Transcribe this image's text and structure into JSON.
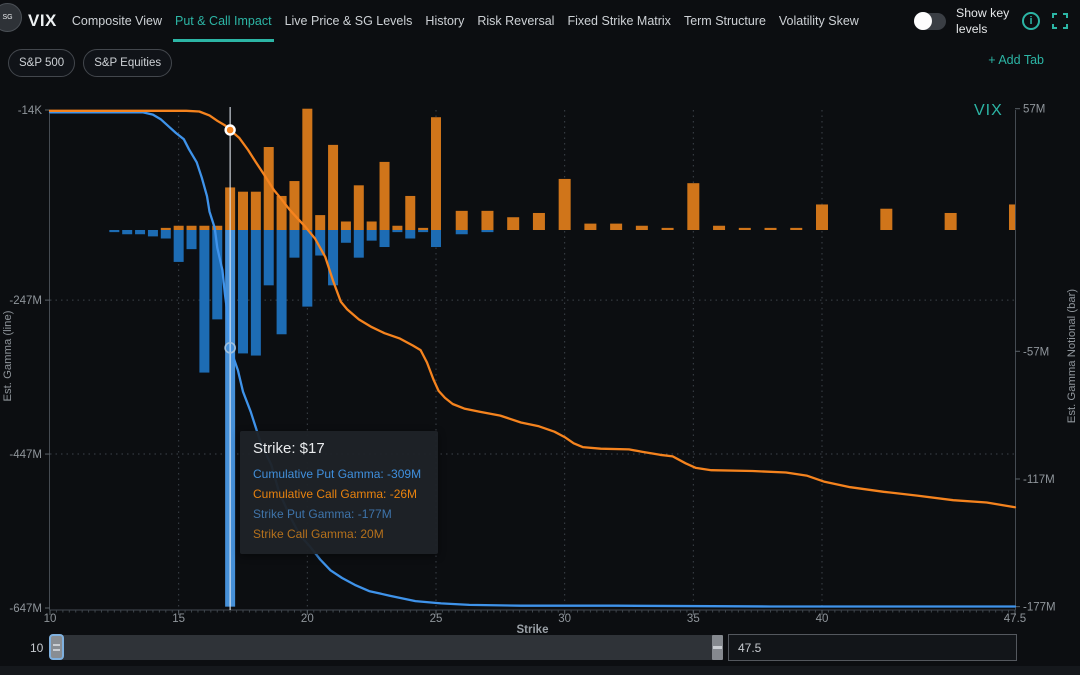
{
  "accent_color": "#2cb5a5",
  "header": {
    "logo_badge": "SG",
    "logo_text": "VIX",
    "tabs": [
      {
        "label": "Composite View",
        "active": false
      },
      {
        "label": "Put & Call Impact",
        "active": true
      },
      {
        "label": "Live Price & SG Levels",
        "active": false
      },
      {
        "label": "History",
        "active": false
      },
      {
        "label": "Risk Reversal",
        "active": false
      },
      {
        "label": "Fixed Strike Matrix",
        "active": false
      },
      {
        "label": "Term Structure",
        "active": false
      },
      {
        "label": "Volatility Skew",
        "active": false
      }
    ],
    "toggle": {
      "label": "Show key levels",
      "state": "off"
    },
    "info_icon": "info-icon",
    "fullscreen_icon": "fullscreen-icon"
  },
  "subnav": {
    "pills": [
      "S&P 500",
      "S&P Equities"
    ],
    "add_tab_label": "+ Add Tab"
  },
  "chart_data": {
    "type": "bar",
    "title": "VIX",
    "xlabel": "Strike",
    "units": "M = millions, values in Est. Gamma",
    "x_axis": {
      "range": [
        10,
        47.5
      ],
      "ticks": [
        10,
        15,
        20,
        25,
        30,
        35,
        40,
        47.5
      ],
      "tick_labels": [
        "10",
        "15",
        "20",
        "25",
        "30",
        "35",
        "40",
        "47.5"
      ],
      "grid_x": [
        15,
        20,
        25,
        30,
        35,
        40
      ]
    },
    "left_axis": {
      "label": "Est. Gamma (line)",
      "ticks": [
        {
          "label": "-14K",
          "value": -0.014
        },
        {
          "label": "-247M",
          "value": -247
        },
        {
          "label": "-447M",
          "value": -447
        },
        {
          "label": "-647M",
          "value": -647
        }
      ],
      "grid_y": [
        -247,
        -447
      ]
    },
    "right_axis": {
      "label": "Est. Gamma Notional (bar)",
      "ticks": [
        {
          "label": "57M",
          "value": 57
        },
        {
          "label": "-57M",
          "value": -57
        },
        {
          "label": "-117M",
          "value": -117
        },
        {
          "label": "-177M",
          "value": -177
        }
      ]
    },
    "bars": {
      "put": {
        "name": "Strike Put Gamma",
        "color": "#1d6cb4",
        "points": [
          [
            12.5,
            -1
          ],
          [
            13,
            -2
          ],
          [
            13.5,
            -2
          ],
          [
            14,
            -3
          ],
          [
            14.5,
            -4
          ],
          [
            15,
            -15
          ],
          [
            15.5,
            -9
          ],
          [
            16,
            -67
          ],
          [
            16.5,
            -42
          ],
          [
            17,
            -177
          ],
          [
            17.5,
            -58
          ],
          [
            18,
            -59
          ],
          [
            18.5,
            -26
          ],
          [
            19,
            -49
          ],
          [
            19.5,
            -13
          ],
          [
            20,
            -36
          ],
          [
            20.5,
            -12
          ],
          [
            21,
            -26
          ],
          [
            21.5,
            -6
          ],
          [
            22,
            -13
          ],
          [
            22.5,
            -5
          ],
          [
            23,
            -8
          ],
          [
            23.5,
            -1
          ],
          [
            24,
            -4
          ],
          [
            24.5,
            -1
          ],
          [
            25,
            -8
          ],
          [
            26,
            -2
          ],
          [
            27,
            -1
          ]
        ]
      },
      "call": {
        "name": "Strike Call Gamma",
        "color": "#d0751a",
        "points": [
          [
            14.5,
            1
          ],
          [
            15,
            2
          ],
          [
            15.5,
            2
          ],
          [
            16,
            2
          ],
          [
            16.5,
            2
          ],
          [
            17,
            20
          ],
          [
            17.5,
            18
          ],
          [
            18,
            18
          ],
          [
            18.5,
            39
          ],
          [
            19,
            16
          ],
          [
            19.5,
            23
          ],
          [
            20,
            57
          ],
          [
            20.5,
            7
          ],
          [
            21,
            40
          ],
          [
            21.5,
            4
          ],
          [
            22,
            21
          ],
          [
            22.5,
            4
          ],
          [
            23,
            32
          ],
          [
            23.5,
            2
          ],
          [
            24,
            16
          ],
          [
            24.5,
            1
          ],
          [
            25,
            53
          ],
          [
            26,
            9
          ],
          [
            27,
            9
          ],
          [
            28,
            6
          ],
          [
            29,
            8
          ],
          [
            30,
            24
          ],
          [
            31,
            3
          ],
          [
            32,
            3
          ],
          [
            33,
            2
          ],
          [
            34,
            1
          ],
          [
            35,
            22
          ],
          [
            36,
            2
          ],
          [
            37,
            1
          ],
          [
            38,
            1
          ],
          [
            39,
            1
          ],
          [
            40,
            12
          ],
          [
            42.5,
            10
          ],
          [
            45,
            8
          ],
          [
            47.5,
            12
          ]
        ]
      }
    },
    "lines": {
      "cumulative_put": {
        "name": "Cumulative Put Gamma",
        "color": "#3f93ea",
        "points": [
          [
            10,
            -3
          ],
          [
            13.6,
            -3
          ],
          [
            14,
            -6
          ],
          [
            14.3,
            -12
          ],
          [
            14.6,
            -21
          ],
          [
            14.9,
            -30
          ],
          [
            15.2,
            -38
          ],
          [
            15.4,
            -51
          ],
          [
            15.7,
            -68
          ],
          [
            15.9,
            -88
          ],
          [
            16.1,
            -112
          ],
          [
            16.2,
            -132
          ],
          [
            16.4,
            -153
          ],
          [
            16.5,
            -179
          ],
          [
            16.7,
            -208
          ],
          [
            16.8,
            -240
          ],
          [
            16.9,
            -266
          ],
          [
            17,
            -309
          ],
          [
            17.3,
            -338
          ],
          [
            17.5,
            -366
          ],
          [
            17.8,
            -392
          ],
          [
            18,
            -413
          ],
          [
            18.2,
            -434
          ],
          [
            18.6,
            -461
          ],
          [
            18.9,
            -496
          ],
          [
            19.3,
            -526
          ],
          [
            19.7,
            -552
          ],
          [
            20.1,
            -567
          ],
          [
            20.5,
            -584
          ],
          [
            20.9,
            -598
          ],
          [
            21.35,
            -608
          ],
          [
            21.85,
            -617
          ],
          [
            22.4,
            -625
          ],
          [
            23.2,
            -631
          ],
          [
            24.2,
            -638
          ],
          [
            25.2,
            -641
          ],
          [
            26.3,
            -643
          ],
          [
            28.3,
            -644
          ],
          [
            32,
            -644
          ],
          [
            38,
            -645
          ],
          [
            47.5,
            -645
          ]
        ]
      },
      "cumulative_call": {
        "name": "Cumulative Call Gamma",
        "color": "#f5831e",
        "points": [
          [
            10,
            -1
          ],
          [
            15.3,
            -1
          ],
          [
            15.8,
            -2
          ],
          [
            16.2,
            -7
          ],
          [
            16.5,
            -14
          ],
          [
            16.8,
            -20
          ],
          [
            17,
            -26
          ],
          [
            17.35,
            -36
          ],
          [
            17.7,
            -52
          ],
          [
            18,
            -68
          ],
          [
            18.3,
            -83
          ],
          [
            18.7,
            -104
          ],
          [
            19,
            -116
          ],
          [
            19.3,
            -129
          ],
          [
            19.6,
            -140
          ],
          [
            19.9,
            -151
          ],
          [
            20.3,
            -167
          ],
          [
            20.7,
            -191
          ],
          [
            21,
            -222
          ],
          [
            21.3,
            -249
          ],
          [
            21.55,
            -259
          ],
          [
            22,
            -272
          ],
          [
            22.5,
            -282
          ],
          [
            23,
            -290
          ],
          [
            23.6,
            -297
          ],
          [
            24.1,
            -306
          ],
          [
            24.4,
            -312
          ],
          [
            24.65,
            -328
          ],
          [
            24.9,
            -350
          ],
          [
            25.1,
            -365
          ],
          [
            25.35,
            -374
          ],
          [
            25.65,
            -382
          ],
          [
            26.1,
            -388
          ],
          [
            26.7,
            -392
          ],
          [
            27.5,
            -397
          ],
          [
            28.3,
            -406
          ],
          [
            29,
            -411
          ],
          [
            29.6,
            -418
          ],
          [
            30,
            -425
          ],
          [
            30.35,
            -433
          ],
          [
            30.7,
            -438
          ],
          [
            31.4,
            -440
          ],
          [
            32.5,
            -441
          ],
          [
            33,
            -444
          ],
          [
            33.7,
            -448
          ],
          [
            34.2,
            -450
          ],
          [
            34.7,
            -459
          ],
          [
            35.1,
            -465
          ],
          [
            35.7,
            -468
          ],
          [
            37.3,
            -469
          ],
          [
            38.6,
            -471
          ],
          [
            39.4,
            -475
          ],
          [
            40.1,
            -483
          ],
          [
            41.1,
            -490
          ],
          [
            42.4,
            -496
          ],
          [
            43.7,
            -501
          ],
          [
            45.1,
            -507
          ],
          [
            46.4,
            -510
          ],
          [
            47.5,
            -516
          ]
        ]
      }
    },
    "highlight": {
      "strike": 17,
      "highlight_bar_color": "#4690d8",
      "crosshair_color": "rgba(226,234,242,0.88)",
      "call_marker": {
        "strike": 17,
        "value": -26,
        "axis": "line"
      },
      "put_marker": {
        "strike": 17,
        "value": -309,
        "axis": "line"
      }
    }
  },
  "tooltip": {
    "title": "Strike: $17",
    "rows": [
      {
        "label": "Cumulative Put Gamma",
        "value": "-309M",
        "color": "#3f8fdd"
      },
      {
        "label": "Cumulative Call Gamma",
        "value": "-26M",
        "color": "#e8820e"
      },
      {
        "label": "Strike Put Gamma",
        "value": "-177M",
        "color": "#3e74ab"
      },
      {
        "label": "Strike Call Gamma",
        "value": "20M",
        "color": "#b5711c"
      }
    ]
  },
  "slider": {
    "min_label": "10",
    "max_value": "47.5"
  }
}
